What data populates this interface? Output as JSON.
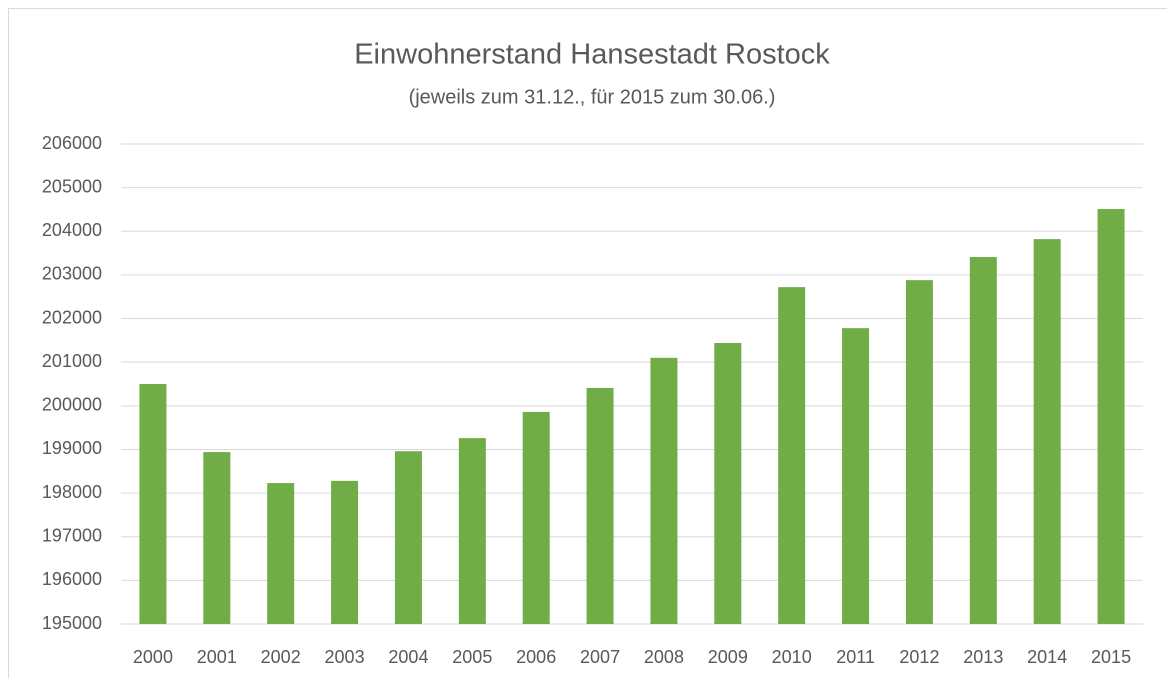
{
  "chart_data": {
    "type": "bar",
    "title": "Einwohnerstand Hansestadt Rostock",
    "subtitle": "(jeweils zum 31.12., für 2015 zum 30.06.)",
    "categories": [
      "2000",
      "2001",
      "2002",
      "2003",
      "2004",
      "2005",
      "2006",
      "2007",
      "2008",
      "2009",
      "2010",
      "2011",
      "2012",
      "2013",
      "2014",
      "2015"
    ],
    "values": [
      200500,
      198940,
      198230,
      198280,
      198960,
      199260,
      199860,
      200410,
      201100,
      201440,
      202720,
      201780,
      202880,
      203410,
      203820,
      204510
    ],
    "color": "#70ad47",
    "ylim": [
      195000,
      206000
    ],
    "yticks": [
      195000,
      196000,
      197000,
      198000,
      199000,
      200000,
      201000,
      202000,
      203000,
      204000,
      205000,
      206000
    ],
    "grid": true
  }
}
